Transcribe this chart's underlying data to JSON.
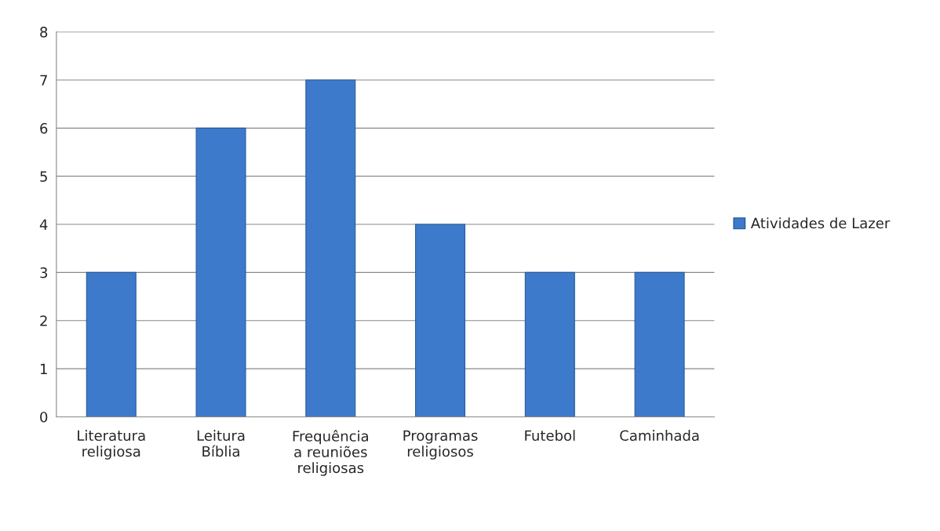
{
  "chart_data": {
    "type": "bar",
    "categories": [
      "Literatura\nreligiosa",
      "Leitura\nBíblia",
      "Frequência\na reuniões\nreligiosas",
      "Programas\nreligiosos",
      "Futebol",
      "Caminhada"
    ],
    "series": [
      {
        "name": "Atividades de Lazer",
        "color": "#3d7acb",
        "values": [
          3,
          6,
          7,
          4,
          3,
          3
        ]
      }
    ],
    "ylim": [
      0,
      8
    ],
    "yticks": [
      0,
      1,
      2,
      3,
      4,
      5,
      6,
      7,
      8
    ],
    "grid": "y",
    "legend": "right"
  }
}
